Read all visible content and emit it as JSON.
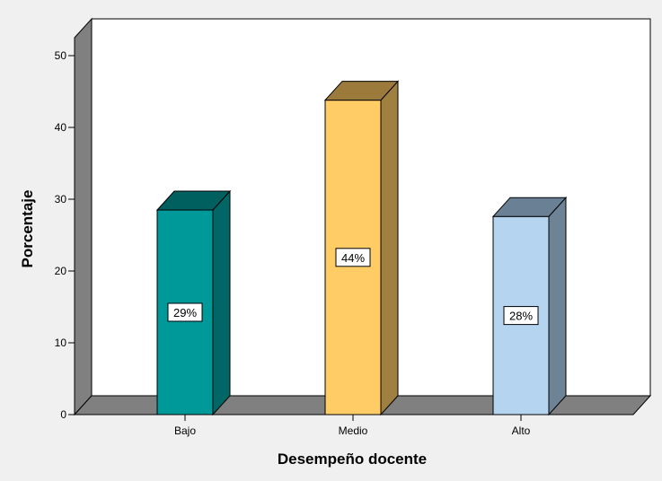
{
  "chart_data": {
    "type": "bar",
    "categories": [
      "Bajo",
      "Medio",
      "Alto"
    ],
    "values": [
      28.5,
      43.8,
      27.6
    ],
    "data_labels": [
      "29%",
      "44%",
      "28%"
    ],
    "xlabel": "Desempeño docente",
    "ylabel": "Porcentaje",
    "ylim": [
      0,
      50
    ],
    "yticks": [
      "0",
      "10",
      "20",
      "30",
      "40",
      "50"
    ],
    "grid": false,
    "three_d": true,
    "colors": {
      "background": "#f0f0f0",
      "plot_back_wall": "#ffffff",
      "plot_walls": "#808080",
      "bars": [
        {
          "front": "#009999",
          "side": "#006666",
          "top": "#005f5f"
        },
        {
          "front": "#ffcc66",
          "side": "#a08040",
          "top": "#9c7a3c"
        },
        {
          "front": "#b4d4f0",
          "side": "#6e8496",
          "top": "#6a8094"
        }
      ]
    }
  }
}
